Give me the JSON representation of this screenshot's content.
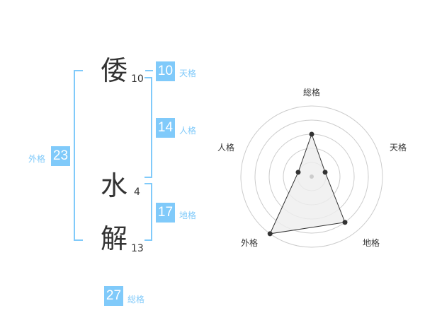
{
  "name": {
    "characters": [
      {
        "char": "倭",
        "strokes": "10"
      },
      {
        "char": "水",
        "strokes": "4"
      },
      {
        "char": "解",
        "strokes": "13"
      }
    ]
  },
  "fortunes": {
    "tenkaku": {
      "label": "天格",
      "value": "10"
    },
    "jinkaku": {
      "label": "人格",
      "value": "14"
    },
    "chikaku": {
      "label": "地格",
      "value": "17"
    },
    "gaikaku": {
      "label": "外格",
      "value": "23"
    },
    "soukaku": {
      "label": "総格",
      "value": "27"
    }
  },
  "chart_data": {
    "type": "radar",
    "axes": [
      "総格",
      "天格",
      "地格",
      "外格",
      "人格"
    ],
    "values": [
      3,
      1,
      4,
      5,
      1
    ],
    "range": [
      0,
      5
    ],
    "rings": 5,
    "colors": {
      "fill": "#eeeeee",
      "line": "#333333",
      "grid": "#cccccc",
      "accent": "#80cafa"
    }
  }
}
